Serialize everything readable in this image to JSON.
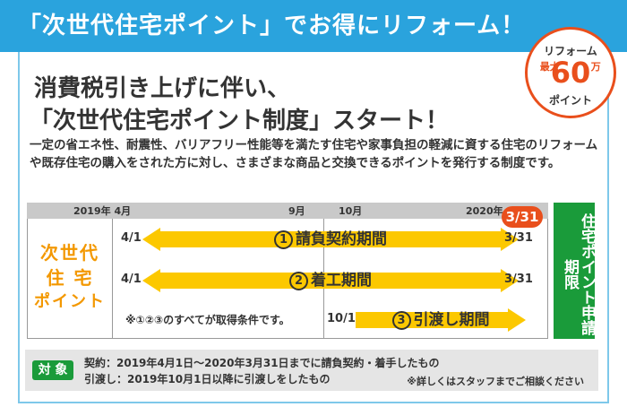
{
  "banner": {
    "title": "「次世代住宅ポイント」でお得にリフォーム！"
  },
  "badge": {
    "top": "リフォーム",
    "max": "最大",
    "amount": "60",
    "unit": "万",
    "bottom": "ポイント"
  },
  "headline": {
    "line1": "消費税引き上げに伴い、",
    "line2": "「次世代住宅ポイント制度」スタート！"
  },
  "description": "一定の省エネ性、耐震性、バリアフリー性能等を満たす住宅や家事負担の軽減に資する住宅のリフォームや既存住宅の購入をされた方に対し、さまざまな商品と交換できるポイントを発行する制度です。",
  "timeline": {
    "ticks": {
      "start": "2019年 4月",
      "sep": "9月",
      "oct": "10月",
      "end": "2020年 3月"
    },
    "deadline": "3/31",
    "side_label": [
      "次世代",
      "住 宅",
      "ポイント"
    ],
    "periods": [
      {
        "num": "1",
        "label": "請負契約期間",
        "start": "4/1",
        "end": "3/31"
      },
      {
        "num": "2",
        "label": "着工期間",
        "start": "4/1",
        "end": "3/31"
      },
      {
        "num": "3",
        "label": "引渡し期間",
        "start": "10/1",
        "end": ""
      }
    ],
    "condition_note": "※①②③のすべてが取得条件です。",
    "deadline_tag": "住宅ポイント申請期限"
  },
  "target": {
    "pill": "対 象",
    "line1": "契約：2019年4月1日～2020年3月31日までに請負契約・着手したもの",
    "line2": "引渡し：2019年10月1日以降に引渡しをしたもの",
    "note": "※詳しくはスタッフまでご相談ください"
  },
  "colors": {
    "banner": "#2aa3dd",
    "accent_red": "#e94f1c",
    "arrow_yellow": "#fcc800",
    "side_orange": "#f39800",
    "tag_green": "#1a9b3a"
  }
}
